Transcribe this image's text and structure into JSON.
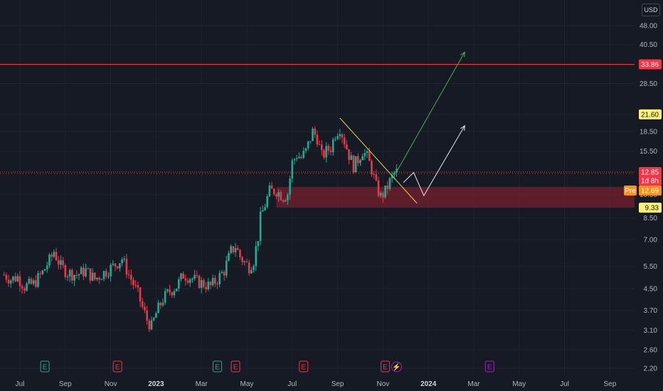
{
  "currency": "USD",
  "chart_data": {
    "type": "candlestick",
    "scale": "log",
    "grid": true,
    "y_ticks": [
      "48.00",
      "40.50",
      "33.86",
      "28.50",
      "21.60",
      "18.50",
      "15.50",
      "12.85",
      "10.50",
      "8.50",
      "7.00",
      "5.50",
      "4.50",
      "3.70",
      "3.10",
      "2.60",
      "2.20"
    ],
    "y_tick_values": [
      48.0,
      40.5,
      33.86,
      28.5,
      21.6,
      18.5,
      15.5,
      12.85,
      10.5,
      8.5,
      7.0,
      5.5,
      4.5,
      3.7,
      3.1,
      2.6,
      2.2
    ],
    "x_labels": [
      {
        "label": "Jul",
        "t": 4.0,
        "bold": false
      },
      {
        "label": "Sep",
        "t": 6.0,
        "bold": false
      },
      {
        "label": "Nov",
        "t": 8.0,
        "bold": false
      },
      {
        "label": "2023",
        "t": 10.0,
        "bold": true
      },
      {
        "label": "Mar",
        "t": 12.0,
        "bold": false
      },
      {
        "label": "May",
        "t": 14.0,
        "bold": false
      },
      {
        "label": "Jul",
        "t": 16.0,
        "bold": false
      },
      {
        "label": "Sep",
        "t": 18.0,
        "bold": false
      },
      {
        "label": "Nov",
        "t": 20.0,
        "bold": false
      },
      {
        "label": "2024",
        "t": 22.0,
        "bold": true
      },
      {
        "label": "Mar",
        "t": 24.0,
        "bold": false
      },
      {
        "label": "May",
        "t": 26.0,
        "bold": false
      },
      {
        "label": "Jul",
        "t": 28.0,
        "bold": false
      },
      {
        "label": "Sep",
        "t": 30.0,
        "bold": false
      }
    ],
    "price_path": [
      [
        3.3,
        5.1
      ],
      [
        3.6,
        4.9
      ],
      [
        3.9,
        5.0
      ],
      [
        4.2,
        4.6
      ],
      [
        4.6,
        4.7
      ],
      [
        5.0,
        5.2
      ],
      [
        5.2,
        5.6
      ],
      [
        5.4,
        6.0
      ],
      [
        5.5,
        6.3
      ],
      [
        5.6,
        6.0
      ],
      [
        5.8,
        5.5
      ],
      [
        6.1,
        5.2
      ],
      [
        6.5,
        5.1
      ],
      [
        6.9,
        5.3
      ],
      [
        7.3,
        4.9
      ],
      [
        7.7,
        5.2
      ],
      [
        8.1,
        5.5
      ],
      [
        8.5,
        5.9
      ],
      [
        8.8,
        5.1
      ],
      [
        9.0,
        4.7
      ],
      [
        9.2,
        4.3
      ],
      [
        9.4,
        3.8
      ],
      [
        9.6,
        3.4
      ],
      [
        9.8,
        3.2
      ],
      [
        10.0,
        3.6
      ],
      [
        10.3,
        4.1
      ],
      [
        10.6,
        4.4
      ],
      [
        10.9,
        4.6
      ],
      [
        11.2,
        5.1
      ],
      [
        11.5,
        5.0
      ],
      [
        11.8,
        4.8
      ],
      [
        12.1,
        4.7
      ],
      [
        12.4,
        4.6
      ],
      [
        12.7,
        4.9
      ],
      [
        13.0,
        5.3
      ],
      [
        13.3,
        6.3
      ],
      [
        13.5,
        6.6
      ],
      [
        13.7,
        6.0
      ],
      [
        13.9,
        5.7
      ],
      [
        14.1,
        5.5
      ],
      [
        14.3,
        5.8
      ],
      [
        14.5,
        7.2
      ],
      [
        14.6,
        8.5
      ],
      [
        14.8,
        9.6
      ],
      [
        15.0,
        10.8
      ],
      [
        15.3,
        10.9
      ],
      [
        15.6,
        10.3
      ],
      [
        15.8,
        10.6
      ],
      [
        16.0,
        14.0
      ],
      [
        16.2,
        15.0
      ],
      [
        16.4,
        14.6
      ],
      [
        16.6,
        15.5
      ],
      [
        16.9,
        18.5
      ],
      [
        17.1,
        17.5
      ],
      [
        17.3,
        14.8
      ],
      [
        17.5,
        15.5
      ],
      [
        17.7,
        16.0
      ],
      [
        17.9,
        18.2
      ],
      [
        18.1,
        19.2
      ],
      [
        18.3,
        17.0
      ],
      [
        18.5,
        15.0
      ],
      [
        18.7,
        13.6
      ],
      [
        18.9,
        14.4
      ],
      [
        19.1,
        15.6
      ],
      [
        19.3,
        14.7
      ],
      [
        19.5,
        13.2
      ],
      [
        19.7,
        11.3
      ],
      [
        19.9,
        10.3
      ],
      [
        20.1,
        10.8
      ],
      [
        20.3,
        11.8
      ],
      [
        20.5,
        12.7
      ],
      [
        20.6,
        12.85
      ]
    ],
    "current_price": 12.85,
    "current_price_tag": "12.85",
    "countdown": "1d 8h",
    "premarket_label": "Pre",
    "premarket_price": "12.69",
    "resistance_level": 33.86,
    "resistance_tag": "33.86",
    "level_21": 21.6,
    "level_21_tag": "21.60",
    "level_9": 9.33,
    "level_9_tag": "9.33",
    "zone_low": 9.33,
    "zone_high": 11.25,
    "downtrend_line": [
      [
        18.1,
        20.9
      ],
      [
        21.5,
        9.7
      ]
    ],
    "bull_arrow": [
      [
        20.6,
        12.9
      ],
      [
        23.6,
        37.8
      ]
    ],
    "zigzag": [
      [
        20.9,
        11.7
      ],
      [
        21.35,
        12.8
      ],
      [
        21.8,
        10.4
      ],
      [
        23.6,
        19.5
      ]
    ],
    "earnings_events": [
      {
        "t": 5.1,
        "label": "E",
        "color": "#22ab94"
      },
      {
        "t": 8.3,
        "label": "E",
        "color": "#f23645"
      },
      {
        "t": 12.7,
        "label": "E",
        "color": "#22ab94"
      },
      {
        "t": 13.5,
        "label": "E",
        "color": "#f23645"
      },
      {
        "t": 16.5,
        "label": "E",
        "color": "#f23645"
      },
      {
        "t": 20.1,
        "label": "E",
        "color": "#f23645"
      },
      {
        "t": 20.6,
        "label": "⚡",
        "color": "#9c27b0"
      },
      {
        "t": 24.7,
        "label": "E",
        "color": "#9c27b0"
      }
    ]
  }
}
